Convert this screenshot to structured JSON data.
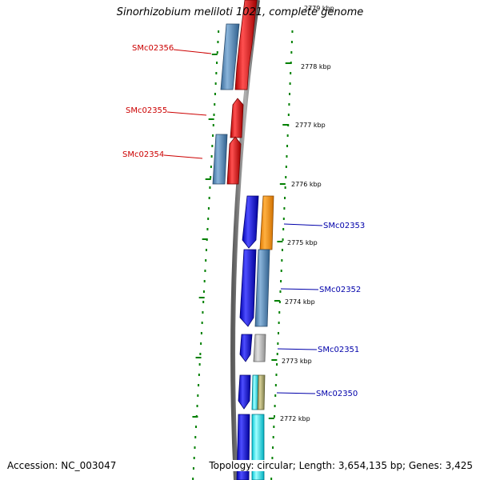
{
  "title": "Sinorhizobium meliloti 1021, complete genome",
  "footer": {
    "accession": "Accession: NC_003047",
    "summary": "Topology: circular; Length: 3,654,135 bp; Genes: 3,425"
  },
  "colors": {
    "reverse_strand_label": "#cc0000",
    "forward_strand_label": "#0000aa",
    "tick": "#008000",
    "backbone": "#7f7f7f"
  },
  "ticks": [
    {
      "label": "2779 kbp"
    },
    {
      "label": "2778 kbp"
    },
    {
      "label": "2777 kbp"
    },
    {
      "label": "2776 kbp"
    },
    {
      "label": "2775 kbp"
    },
    {
      "label": "2774 kbp"
    },
    {
      "label": "2773 kbp"
    },
    {
      "label": "2772 kbp"
    }
  ],
  "gene_labels": [
    {
      "name": "SMc02356",
      "strand": "reverse"
    },
    {
      "name": "SMc02355",
      "strand": "reverse"
    },
    {
      "name": "SMc02354",
      "strand": "reverse"
    },
    {
      "name": "SMc02353",
      "strand": "forward"
    },
    {
      "name": "SMc02352",
      "strand": "forward"
    },
    {
      "name": "SMc02351",
      "strand": "forward"
    },
    {
      "name": "SMc02350",
      "strand": "forward"
    }
  ]
}
